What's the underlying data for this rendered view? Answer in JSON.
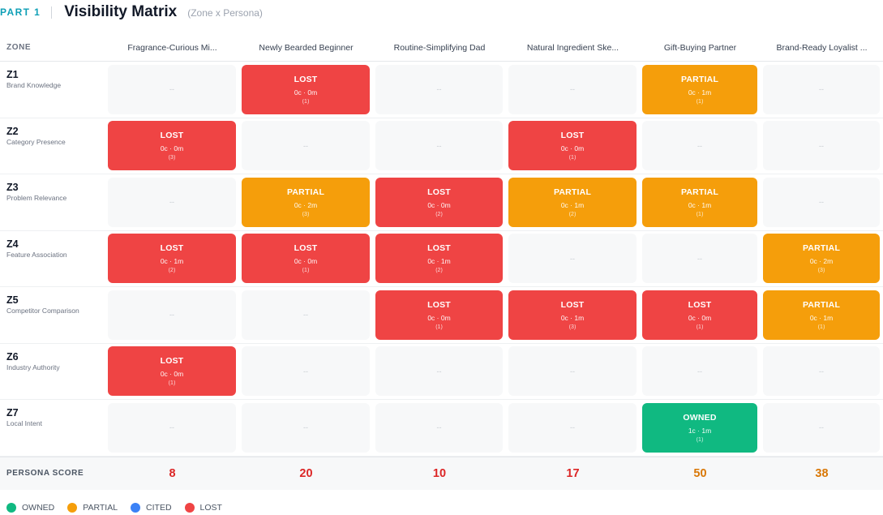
{
  "header": {
    "part": "PART 1",
    "title": "Visibility Matrix",
    "subtitle": "(Zone x Persona)"
  },
  "matrix": {
    "zone_header": "ZONE",
    "personas": [
      "Fragrance-Curious Mi...",
      "Newly Bearded Beginner",
      "Routine-Simplifying Dad",
      "Natural Ingredient Ske...",
      "Gift-Buying Partner",
      "Brand-Ready Loyalist ..."
    ],
    "empty_text": "--",
    "rows": [
      {
        "id": "Z1",
        "name": "Brand Knowledge",
        "cells": [
          {
            "status": "empty"
          },
          {
            "status": "lost",
            "label": "LOST",
            "metric": "0c · 0m",
            "count": "(1)"
          },
          {
            "status": "empty"
          },
          {
            "status": "empty"
          },
          {
            "status": "partial",
            "label": "PARTIAL",
            "metric": "0c · 1m",
            "count": "(1)"
          },
          {
            "status": "empty"
          }
        ]
      },
      {
        "id": "Z2",
        "name": "Category Presence",
        "cells": [
          {
            "status": "lost",
            "label": "LOST",
            "metric": "0c · 0m",
            "count": "(3)"
          },
          {
            "status": "empty"
          },
          {
            "status": "empty"
          },
          {
            "status": "lost",
            "label": "LOST",
            "metric": "0c · 0m",
            "count": "(1)"
          },
          {
            "status": "empty"
          },
          {
            "status": "empty"
          }
        ]
      },
      {
        "id": "Z3",
        "name": "Problem Relevance",
        "cells": [
          {
            "status": "empty"
          },
          {
            "status": "partial",
            "label": "PARTIAL",
            "metric": "0c · 2m",
            "count": "(3)"
          },
          {
            "status": "lost",
            "label": "LOST",
            "metric": "0c · 0m",
            "count": "(2)"
          },
          {
            "status": "partial",
            "label": "PARTIAL",
            "metric": "0c · 1m",
            "count": "(2)"
          },
          {
            "status": "partial",
            "label": "PARTIAL",
            "metric": "0c · 1m",
            "count": "(1)"
          },
          {
            "status": "empty"
          }
        ]
      },
      {
        "id": "Z4",
        "name": "Feature Association",
        "cells": [
          {
            "status": "lost",
            "label": "LOST",
            "metric": "0c · 1m",
            "count": "(2)"
          },
          {
            "status": "lost",
            "label": "LOST",
            "metric": "0c · 0m",
            "count": "(1)"
          },
          {
            "status": "lost",
            "label": "LOST",
            "metric": "0c · 1m",
            "count": "(2)"
          },
          {
            "status": "empty"
          },
          {
            "status": "empty"
          },
          {
            "status": "partial",
            "label": "PARTIAL",
            "metric": "0c · 2m",
            "count": "(3)"
          }
        ]
      },
      {
        "id": "Z5",
        "name": "Competitor Comparison",
        "cells": [
          {
            "status": "empty"
          },
          {
            "status": "empty"
          },
          {
            "status": "lost",
            "label": "LOST",
            "metric": "0c · 0m",
            "count": "(1)"
          },
          {
            "status": "lost",
            "label": "LOST",
            "metric": "0c · 1m",
            "count": "(3)"
          },
          {
            "status": "lost",
            "label": "LOST",
            "metric": "0c · 0m",
            "count": "(1)"
          },
          {
            "status": "partial",
            "label": "PARTIAL",
            "metric": "0c · 1m",
            "count": "(1)"
          }
        ]
      },
      {
        "id": "Z6",
        "name": "Industry Authority",
        "cells": [
          {
            "status": "lost",
            "label": "LOST",
            "metric": "0c · 0m",
            "count": "(1)"
          },
          {
            "status": "empty"
          },
          {
            "status": "empty"
          },
          {
            "status": "empty"
          },
          {
            "status": "empty"
          },
          {
            "status": "empty"
          }
        ]
      },
      {
        "id": "Z7",
        "name": "Local Intent",
        "cells": [
          {
            "status": "empty"
          },
          {
            "status": "empty"
          },
          {
            "status": "empty"
          },
          {
            "status": "empty"
          },
          {
            "status": "owned",
            "label": "OWNED",
            "metric": "1c · 1m",
            "count": "(1)"
          },
          {
            "status": "empty"
          }
        ]
      }
    ],
    "score_label": "PERSONA SCORE",
    "scores": [
      {
        "value": "8",
        "color": "#dc2626"
      },
      {
        "value": "20",
        "color": "#dc2626"
      },
      {
        "value": "10",
        "color": "#dc2626"
      },
      {
        "value": "17",
        "color": "#dc2626"
      },
      {
        "value": "50",
        "color": "#d97706"
      },
      {
        "value": "38",
        "color": "#d97706"
      }
    ]
  },
  "legend": [
    {
      "label": "OWNED",
      "color": "#10b981"
    },
    {
      "label": "PARTIAL",
      "color": "#f59e0b"
    },
    {
      "label": "CITED",
      "color": "#3b82f6"
    },
    {
      "label": "LOST",
      "color": "#ef4444"
    }
  ]
}
